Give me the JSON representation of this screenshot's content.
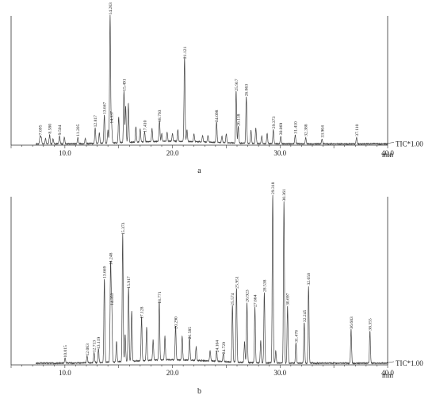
{
  "chart_data": [
    {
      "type": "line",
      "panel_label": "a",
      "xlabel": "min",
      "xlim": [
        5.0,
        40.0
      ],
      "x_ticks": [
        "10.0",
        "20.0",
        "30.0",
        "40.0"
      ],
      "trace_label": "TIC*1.00",
      "baseline": 0.01,
      "noise": 0.004,
      "peaks": [
        {
          "x": 7.695,
          "h": 0.06
        },
        {
          "x": 7.8,
          "h": 0.05
        },
        {
          "x": 8.2,
          "h": 0.04
        },
        {
          "x": 8.58,
          "h": 0.07
        },
        {
          "x": 8.9,
          "h": 0.04
        },
        {
          "x": 9.504,
          "h": 0.06
        },
        {
          "x": 9.95,
          "h": 0.05
        },
        {
          "x": 11.205,
          "h": 0.05
        },
        {
          "x": 11.9,
          "h": 0.04
        },
        {
          "x": 12.817,
          "h": 0.12
        },
        {
          "x": 13.2,
          "h": 0.08
        },
        {
          "x": 13.667,
          "h": 0.22
        },
        {
          "x": 14.0,
          "h": 0.1
        },
        {
          "x": 14.203,
          "h": 0.99
        },
        {
          "x": 14.337,
          "h": 0.15
        },
        {
          "x": 15.0,
          "h": 0.2
        },
        {
          "x": 15.491,
          "h": 0.4
        },
        {
          "x": 15.65,
          "h": 0.28
        },
        {
          "x": 15.9,
          "h": 0.3
        },
        {
          "x": 16.6,
          "h": 0.12
        },
        {
          "x": 17.0,
          "h": 0.1
        },
        {
          "x": 17.41,
          "h": 0.08
        },
        {
          "x": 18.1,
          "h": 0.1
        },
        {
          "x": 18.793,
          "h": 0.16
        },
        {
          "x": 19.0,
          "h": 0.06
        },
        {
          "x": 19.5,
          "h": 0.07
        },
        {
          "x": 20.0,
          "h": 0.06
        },
        {
          "x": 20.5,
          "h": 0.09
        },
        {
          "x": 21.121,
          "h": 0.65
        },
        {
          "x": 21.35,
          "h": 0.09
        },
        {
          "x": 22.0,
          "h": 0.06
        },
        {
          "x": 22.8,
          "h": 0.05
        },
        {
          "x": 23.3,
          "h": 0.05
        },
        {
          "x": 24.098,
          "h": 0.16
        },
        {
          "x": 24.6,
          "h": 0.05
        },
        {
          "x": 25.0,
          "h": 0.07
        },
        {
          "x": 25.917,
          "h": 0.4
        },
        {
          "x": 26.118,
          "h": 0.13
        },
        {
          "x": 26.863,
          "h": 0.36
        },
        {
          "x": 27.3,
          "h": 0.1
        },
        {
          "x": 27.75,
          "h": 0.12
        },
        {
          "x": 28.3,
          "h": 0.06
        },
        {
          "x": 28.8,
          "h": 0.08
        },
        {
          "x": 29.373,
          "h": 0.11
        },
        {
          "x": 30.069,
          "h": 0.06
        },
        {
          "x": 31.41,
          "h": 0.07
        },
        {
          "x": 32.388,
          "h": 0.05
        },
        {
          "x": 33.904,
          "h": 0.04
        },
        {
          "x": 37.11,
          "h": 0.05
        }
      ],
      "peak_labels": [
        {
          "x": 7.695,
          "text": "7.695"
        },
        {
          "x": 8.58,
          "text": "8.580"
        },
        {
          "x": 9.504,
          "text": "9.504"
        },
        {
          "x": 11.205,
          "text": "11.205"
        },
        {
          "x": 12.817,
          "text": "12.817"
        },
        {
          "x": 13.667,
          "text": "13.667"
        },
        {
          "x": 14.203,
          "text": "14.203"
        },
        {
          "x": 14.337,
          "text": "14.337"
        },
        {
          "x": 15.491,
          "text": "15.491"
        },
        {
          "x": 17.41,
          "text": "17.410"
        },
        {
          "x": 18.793,
          "text": "18.793"
        },
        {
          "x": 21.121,
          "text": "21.121"
        },
        {
          "x": 24.098,
          "text": "24.098"
        },
        {
          "x": 25.917,
          "text": "25.917"
        },
        {
          "x": 26.118,
          "text": "26.118"
        },
        {
          "x": 26.863,
          "text": "26.863"
        },
        {
          "x": 29.373,
          "text": "29.373"
        },
        {
          "x": 30.069,
          "text": "30.069"
        },
        {
          "x": 31.41,
          "text": "31.410"
        },
        {
          "x": 32.388,
          "text": "32.388"
        },
        {
          "x": 33.904,
          "text": "33.904"
        },
        {
          "x": 37.11,
          "text": "37.110"
        }
      ]
    },
    {
      "type": "line",
      "panel_label": "b",
      "xlabel": "min",
      "xlim": [
        5.0,
        40.0
      ],
      "x_ticks": [
        "10.0",
        "20.0",
        "30.0",
        "40.0"
      ],
      "trace_label": "TIC*1.00",
      "baseline": 0.01,
      "noise": 0.004,
      "peaks": [
        {
          "x": 10.015,
          "h": 0.03
        },
        {
          "x": 12.063,
          "h": 0.04
        },
        {
          "x": 12.713,
          "h": 0.06
        },
        {
          "x": 13.119,
          "h": 0.08
        },
        {
          "x": 13.669,
          "h": 0.5
        },
        {
          "x": 14.248,
          "h": 0.58
        },
        {
          "x": 14.353,
          "h": 0.34
        },
        {
          "x": 14.8,
          "h": 0.12
        },
        {
          "x": 15.373,
          "h": 0.76
        },
        {
          "x": 15.602,
          "h": 0.16
        },
        {
          "x": 15.917,
          "h": 0.44
        },
        {
          "x": 16.208,
          "h": 0.3
        },
        {
          "x": 17.128,
          "h": 0.26
        },
        {
          "x": 17.6,
          "h": 0.2
        },
        {
          "x": 18.2,
          "h": 0.12
        },
        {
          "x": 18.771,
          "h": 0.35
        },
        {
          "x": 19.3,
          "h": 0.14
        },
        {
          "x": 20.29,
          "h": 0.2
        },
        {
          "x": 20.9,
          "h": 0.14
        },
        {
          "x": 21.585,
          "h": 0.14
        },
        {
          "x": 22.2,
          "h": 0.08
        },
        {
          "x": 23.5,
          "h": 0.06
        },
        {
          "x": 24.104,
          "h": 0.06
        },
        {
          "x": 24.729,
          "h": 0.05
        },
        {
          "x": 25.574,
          "h": 0.34
        },
        {
          "x": 25.951,
          "h": 0.44
        },
        {
          "x": 26.7,
          "h": 0.12
        },
        {
          "x": 26.923,
          "h": 0.36
        },
        {
          "x": 27.664,
          "h": 0.33
        },
        {
          "x": 28.2,
          "h": 0.13
        },
        {
          "x": 28.538,
          "h": 0.42
        },
        {
          "x": 29.318,
          "h": 1.0
        },
        {
          "x": 29.6,
          "h": 0.07
        },
        {
          "x": 30.361,
          "h": 0.96
        },
        {
          "x": 30.697,
          "h": 0.34
        },
        {
          "x": 31.478,
          "h": 0.12
        },
        {
          "x": 32.245,
          "h": 0.24
        },
        {
          "x": 32.65,
          "h": 0.46
        },
        {
          "x": 36.603,
          "h": 0.2
        },
        {
          "x": 38.355,
          "h": 0.19
        }
      ],
      "peak_labels": [
        {
          "x": 10.015,
          "text": "10.015"
        },
        {
          "x": 12.063,
          "text": "12.063"
        },
        {
          "x": 12.713,
          "text": "12.713"
        },
        {
          "x": 13.119,
          "text": "13.119"
        },
        {
          "x": 13.669,
          "text": "13.669"
        },
        {
          "x": 14.248,
          "text": "14.248"
        },
        {
          "x": 14.353,
          "text": "14.353"
        },
        {
          "x": 15.373,
          "text": "15.373"
        },
        {
          "x": 15.917,
          "text": "15.917"
        },
        {
          "x": 17.128,
          "text": "17.128"
        },
        {
          "x": 18.771,
          "text": "18.771"
        },
        {
          "x": 20.29,
          "text": "20.290"
        },
        {
          "x": 21.585,
          "text": "21.585"
        },
        {
          "x": 24.104,
          "text": "24.104"
        },
        {
          "x": 24.729,
          "text": "24.729"
        },
        {
          "x": 25.574,
          "text": "25.574"
        },
        {
          "x": 25.951,
          "text": "25.951"
        },
        {
          "x": 26.923,
          "text": "26.923"
        },
        {
          "x": 27.664,
          "text": "27.664"
        },
        {
          "x": 28.538,
          "text": "28.538"
        },
        {
          "x": 29.318,
          "text": "29.318"
        },
        {
          "x": 30.361,
          "text": "30.361"
        },
        {
          "x": 30.697,
          "text": "30.697"
        },
        {
          "x": 31.478,
          "text": "31.478"
        },
        {
          "x": 32.245,
          "text": "32.245"
        },
        {
          "x": 32.65,
          "text": "32.650"
        },
        {
          "x": 36.603,
          "text": "36.603"
        },
        {
          "x": 38.355,
          "text": "38.355"
        }
      ]
    }
  ],
  "colors": {
    "trace": "#444444",
    "axis": "#333333",
    "text": "#222222"
  }
}
